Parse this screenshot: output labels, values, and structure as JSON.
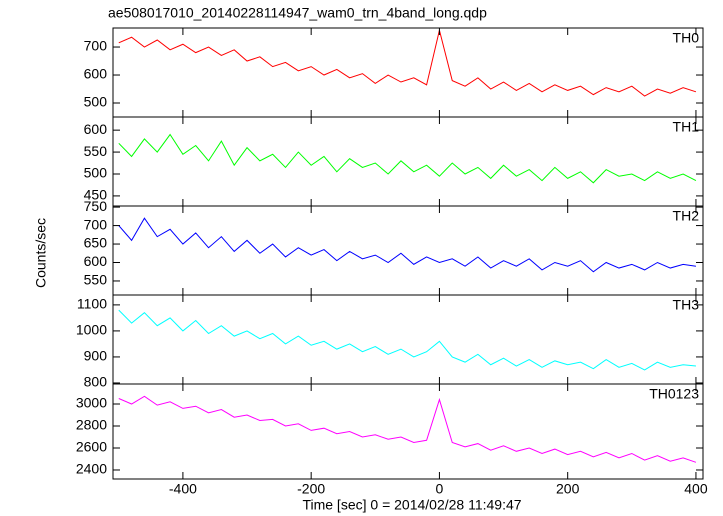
{
  "title": "ae508017010_20140228114947_wam0_trn_4band_long.qdp",
  "xlabel": "Time [sec] 0 = 2014/02/28 11:49:47",
  "ylabel": "Counts/sec",
  "chart_data": [
    {
      "type": "line",
      "label": "TH0",
      "color": "#ff0000",
      "x": [
        -500,
        -480,
        -460,
        -440,
        -420,
        -400,
        -380,
        -360,
        -340,
        -320,
        -300,
        -280,
        -260,
        -240,
        -220,
        -200,
        -180,
        -160,
        -140,
        -120,
        -100,
        -80,
        -60,
        -40,
        -20,
        0,
        20,
        40,
        60,
        80,
        100,
        120,
        140,
        160,
        180,
        200,
        220,
        240,
        260,
        280,
        300,
        320,
        340,
        360,
        380,
        400
      ],
      "values": [
        715,
        735,
        700,
        725,
        690,
        710,
        680,
        700,
        670,
        690,
        650,
        665,
        630,
        645,
        615,
        630,
        600,
        620,
        590,
        605,
        570,
        600,
        575,
        590,
        565,
        760,
        580,
        560,
        590,
        550,
        575,
        545,
        570,
        540,
        565,
        545,
        560,
        530,
        555,
        540,
        560,
        525,
        550,
        535,
        555,
        540
      ],
      "xlim": [
        -509,
        411
      ],
      "ylim": [
        450,
        768
      ],
      "xticks": [
        -400,
        -200,
        0,
        200,
        400
      ],
      "yticks": [
        500,
        600,
        700
      ]
    },
    {
      "type": "line",
      "label": "TH1",
      "color": "#00ff00",
      "x": [
        -500,
        -480,
        -460,
        -440,
        -420,
        -400,
        -380,
        -360,
        -340,
        -320,
        -300,
        -280,
        -260,
        -240,
        -220,
        -200,
        -180,
        -160,
        -140,
        -120,
        -100,
        -80,
        -60,
        -40,
        -20,
        0,
        20,
        40,
        60,
        80,
        100,
        120,
        140,
        160,
        180,
        200,
        220,
        240,
        260,
        280,
        300,
        320,
        340,
        360,
        380,
        400
      ],
      "values": [
        570,
        540,
        580,
        550,
        590,
        545,
        565,
        530,
        575,
        520,
        560,
        530,
        545,
        515,
        550,
        520,
        540,
        505,
        535,
        515,
        525,
        500,
        530,
        505,
        520,
        495,
        525,
        500,
        515,
        490,
        520,
        495,
        510,
        485,
        515,
        490,
        505,
        480,
        510,
        495,
        500,
        485,
        505,
        490,
        500,
        485
      ],
      "xlim": [
        -509,
        411
      ],
      "ylim": [
        427,
        630
      ],
      "xticks": [
        -400,
        -200,
        0,
        200,
        400
      ],
      "yticks": [
        450,
        500,
        550,
        600
      ]
    },
    {
      "type": "line",
      "label": "TH2",
      "color": "#0000ff",
      "x": [
        -500,
        -480,
        -460,
        -440,
        -420,
        -400,
        -380,
        -360,
        -340,
        -320,
        -300,
        -280,
        -260,
        -240,
        -220,
        -200,
        -180,
        -160,
        -140,
        -120,
        -100,
        -80,
        -60,
        -40,
        -20,
        0,
        20,
        40,
        60,
        80,
        100,
        120,
        140,
        160,
        180,
        200,
        220,
        240,
        260,
        280,
        300,
        320,
        340,
        360,
        380,
        400
      ],
      "values": [
        700,
        660,
        720,
        670,
        690,
        650,
        680,
        640,
        670,
        630,
        660,
        625,
        650,
        615,
        640,
        620,
        635,
        605,
        630,
        610,
        620,
        600,
        625,
        595,
        615,
        600,
        610,
        590,
        615,
        585,
        605,
        590,
        610,
        580,
        600,
        590,
        605,
        575,
        600,
        585,
        595,
        580,
        600,
        585,
        595,
        590
      ],
      "xlim": [
        -509,
        411
      ],
      "ylim": [
        512,
        753
      ],
      "xticks": [
        -400,
        -200,
        0,
        200,
        400
      ],
      "yticks": [
        550,
        600,
        650,
        700,
        750
      ]
    },
    {
      "type": "line",
      "label": "TH3",
      "color": "#00ffff",
      "x": [
        -500,
        -480,
        -460,
        -440,
        -420,
        -400,
        -380,
        -360,
        -340,
        -320,
        -300,
        -280,
        -260,
        -240,
        -220,
        -200,
        -180,
        -160,
        -140,
        -120,
        -100,
        -80,
        -60,
        -40,
        -20,
        0,
        20,
        40,
        60,
        80,
        100,
        120,
        140,
        160,
        180,
        200,
        220,
        240,
        260,
        280,
        300,
        320,
        340,
        360,
        380,
        400
      ],
      "values": [
        1080,
        1030,
        1070,
        1020,
        1050,
        1000,
        1040,
        990,
        1020,
        980,
        1000,
        970,
        990,
        950,
        980,
        945,
        960,
        930,
        950,
        920,
        940,
        910,
        930,
        900,
        920,
        960,
        900,
        880,
        910,
        870,
        895,
        865,
        890,
        860,
        885,
        870,
        880,
        855,
        890,
        860,
        875,
        850,
        880,
        860,
        870,
        865
      ],
      "xlim": [
        -509,
        411
      ],
      "ylim": [
        796,
        1138
      ],
      "xticks": [
        -400,
        -200,
        0,
        200,
        400
      ],
      "yticks": [
        800,
        900,
        1000,
        1100
      ]
    },
    {
      "type": "line",
      "label": "TH0123",
      "color": "#ff00ff",
      "x": [
        -500,
        -480,
        -460,
        -440,
        -420,
        -400,
        -380,
        -360,
        -340,
        -320,
        -300,
        -280,
        -260,
        -240,
        -220,
        -200,
        -180,
        -160,
        -140,
        -120,
        -100,
        -80,
        -60,
        -40,
        -20,
        0,
        20,
        40,
        60,
        80,
        100,
        120,
        140,
        160,
        180,
        200,
        220,
        240,
        260,
        280,
        300,
        320,
        340,
        360,
        380,
        400
      ],
      "values": [
        3050,
        3000,
        3070,
        2990,
        3020,
        2960,
        2980,
        2920,
        2950,
        2880,
        2900,
        2850,
        2860,
        2800,
        2820,
        2760,
        2780,
        2730,
        2750,
        2700,
        2720,
        2680,
        2700,
        2650,
        2670,
        3040,
        2650,
        2610,
        2640,
        2580,
        2620,
        2570,
        2600,
        2550,
        2590,
        2540,
        2570,
        2520,
        2560,
        2510,
        2550,
        2490,
        2530,
        2480,
        2510,
        2470
      ],
      "xlim": [
        -509,
        411
      ],
      "ylim": [
        2318,
        3182
      ],
      "xticks": [
        -400,
        -200,
        0,
        200,
        400
      ],
      "yticks": [
        2400,
        2600,
        2800,
        3000
      ]
    }
  ]
}
